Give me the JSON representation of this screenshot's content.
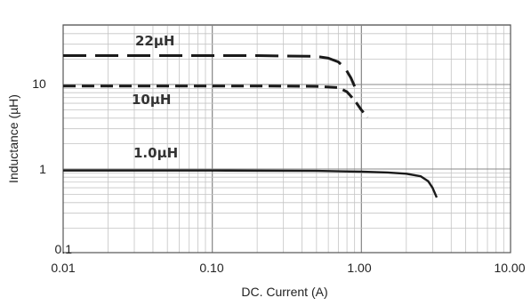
{
  "chart_data": {
    "type": "line",
    "title": "",
    "xlabel": "DC. Current (A)",
    "ylabel": "Inductance (µH)",
    "x_scale": "log",
    "y_scale": "log",
    "xlim": [
      0.01,
      10
    ],
    "ylim": [
      0.1,
      60
    ],
    "grid": true,
    "x_ticks": [
      "0.01",
      "0.10",
      "1.00",
      "10.00"
    ],
    "y_ticks": [
      "10",
      "1",
      "0.1"
    ],
    "series": [
      {
        "name": "22µH",
        "style": "dashed",
        "x": [
          0.01,
          0.05,
          0.2,
          0.5,
          0.6,
          0.7,
          0.78,
          0.85,
          0.9
        ],
        "y": [
          22,
          22,
          22,
          21.5,
          20.5,
          18.5,
          15.5,
          12,
          9.5
        ]
      },
      {
        "name": "10µH",
        "style": "dashed",
        "x": [
          0.01,
          0.05,
          0.2,
          0.5,
          0.7,
          0.8,
          0.9,
          1.0,
          1.1
        ],
        "y": [
          9.6,
          9.6,
          9.6,
          9.5,
          9.2,
          8.2,
          6.5,
          5.0,
          4.1
        ]
      },
      {
        "name": "1.0µH",
        "style": "solid",
        "x": [
          0.01,
          0.1,
          0.5,
          1.0,
          1.5,
          2.0,
          2.5,
          2.8,
          3.0,
          3.2
        ],
        "y": [
          0.96,
          0.96,
          0.95,
          0.93,
          0.91,
          0.88,
          0.82,
          0.72,
          0.6,
          0.46
        ]
      }
    ]
  }
}
